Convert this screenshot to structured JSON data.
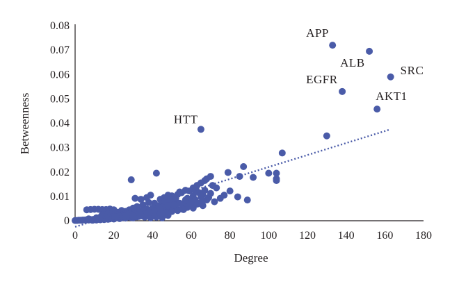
{
  "chart_data": {
    "type": "scatter",
    "title": "",
    "xlabel": "Degree",
    "ylabel": "Betweenness",
    "xlim": [
      0,
      180
    ],
    "ylim": [
      0,
      0.08
    ],
    "xticks": [
      "0",
      "20",
      "40",
      "60",
      "80",
      "100",
      "120",
      "140",
      "160",
      "180"
    ],
    "yticks": [
      "0",
      "0.01",
      "0.02",
      "0.03",
      "0.04",
      "0.05",
      "0.06",
      "0.07",
      "0.08"
    ],
    "grid": false,
    "legend": "none",
    "point_color": "#4a5ba8",
    "trendline": {
      "style": "dotted",
      "x": [
        0,
        163
      ],
      "y": [
        -0.0025,
        0.0375
      ]
    },
    "labeled_points": [
      {
        "label": "APP",
        "x": 133,
        "y": 0.072
      },
      {
        "label": "ALB",
        "x": 152,
        "y": 0.0695
      },
      {
        "label": "SRC",
        "x": 163,
        "y": 0.059
      },
      {
        "label": "EGFR",
        "x": 138,
        "y": 0.053
      },
      {
        "label": "AKT1",
        "x": 156,
        "y": 0.0458
      },
      {
        "label": "HTT",
        "x": 65,
        "y": 0.0375
      }
    ],
    "points": [
      [
        130,
        0.0348
      ],
      [
        107,
        0.0278
      ],
      [
        104,
        0.0195
      ],
      [
        104,
        0.0172
      ],
      [
        104,
        0.0165
      ],
      [
        100,
        0.0195
      ],
      [
        92,
        0.0178
      ],
      [
        87,
        0.0222
      ],
      [
        85,
        0.0182
      ],
      [
        79,
        0.0198
      ],
      [
        89,
        0.0085
      ],
      [
        84,
        0.0098
      ],
      [
        80,
        0.0122
      ],
      [
        73,
        0.0135
      ],
      [
        71,
        0.0145
      ],
      [
        70,
        0.0182
      ],
      [
        68,
        0.0172
      ],
      [
        67,
        0.0165
      ],
      [
        65,
        0.0155
      ],
      [
        63,
        0.0145
      ],
      [
        61,
        0.0135
      ],
      [
        62,
        0.0125
      ],
      [
        59,
        0.0122
      ],
      [
        57,
        0.0125
      ],
      [
        55,
        0.0115
      ],
      [
        53,
        0.0108
      ],
      [
        50,
        0.0102
      ],
      [
        48,
        0.0105
      ],
      [
        46,
        0.0095
      ],
      [
        44,
        0.0088
      ],
      [
        42,
        0.0195
      ],
      [
        29,
        0.0168
      ],
      [
        66,
        0.0108
      ],
      [
        68,
        0.0085
      ],
      [
        66,
        0.0062
      ],
      [
        61,
        0.0052
      ],
      [
        64,
        0.0072
      ],
      [
        59,
        0.0075
      ],
      [
        56,
        0.0068
      ],
      [
        53,
        0.0072
      ],
      [
        50,
        0.0078
      ],
      [
        47,
        0.0072
      ],
      [
        44,
        0.0065
      ],
      [
        41,
        0.0072
      ],
      [
        38,
        0.0075
      ],
      [
        35,
        0.0065
      ],
      [
        32,
        0.0058
      ],
      [
        31,
        0.0092
      ],
      [
        34,
        0.0088
      ],
      [
        37,
        0.0095
      ],
      [
        39,
        0.0105
      ],
      [
        36,
        0.0048
      ],
      [
        33,
        0.0042
      ],
      [
        30,
        0.0052
      ],
      [
        28,
        0.0045
      ],
      [
        26,
        0.0038
      ],
      [
        24,
        0.0042
      ],
      [
        22,
        0.0035
      ],
      [
        20,
        0.0045
      ],
      [
        18,
        0.0048
      ],
      [
        16,
        0.0046
      ],
      [
        14,
        0.0046
      ],
      [
        12,
        0.0047
      ],
      [
        10,
        0.0047
      ],
      [
        8,
        0.0046
      ],
      [
        6,
        0.0045
      ],
      [
        14,
        0.0025
      ],
      [
        17,
        0.0028
      ],
      [
        19,
        0.0022
      ],
      [
        22,
        0.0024
      ],
      [
        25,
        0.0026
      ],
      [
        28,
        0.0031
      ],
      [
        31,
        0.0036
      ],
      [
        34,
        0.0031
      ],
      [
        37,
        0.0026
      ],
      [
        40,
        0.0032
      ],
      [
        43,
        0.0038
      ],
      [
        46,
        0.0042
      ],
      [
        49,
        0.0046
      ],
      [
        52,
        0.0052
      ],
      [
        55,
        0.0048
      ],
      [
        58,
        0.0055
      ],
      [
        42,
        0.0015
      ],
      [
        45,
        0.0012
      ],
      [
        48,
        0.0022
      ],
      [
        39,
        0.0012
      ],
      [
        36,
        0.0015
      ],
      [
        33,
        0.0018
      ],
      [
        30,
        0.0012
      ],
      [
        27,
        0.0015
      ],
      [
        24,
        0.0012
      ],
      [
        21,
        0.0012
      ],
      [
        18,
        0.0008
      ],
      [
        15,
        0.0012
      ],
      [
        12,
        0.0008
      ],
      [
        9,
        0.0005
      ],
      [
        6,
        0.0004
      ],
      [
        4,
        0.0003
      ],
      [
        2,
        0.0002
      ],
      [
        0,
        0.0001
      ],
      [
        1,
        0.0001
      ],
      [
        3,
        0.0002
      ],
      [
        5,
        0.0003
      ],
      [
        7,
        0.0003
      ],
      [
        9,
        0.0002
      ],
      [
        11,
        0.0003
      ],
      [
        13,
        0.0004
      ],
      [
        15,
        0.0005
      ],
      [
        17,
        0.0006
      ],
      [
        20,
        0.0007
      ],
      [
        23,
        0.0009
      ],
      [
        26,
        0.0011
      ],
      [
        29,
        0.0013
      ],
      [
        32,
        0.0016
      ],
      [
        35,
        0.0019
      ],
      [
        38,
        0.0022
      ],
      [
        41,
        0.0026
      ],
      [
        44,
        0.0029
      ],
      [
        47,
        0.0033
      ],
      [
        50,
        0.0038
      ],
      [
        53,
        0.0042
      ],
      [
        56,
        0.0046
      ],
      [
        60,
        0.0061
      ],
      [
        63,
        0.0068
      ],
      [
        66,
        0.0082
      ],
      [
        69,
        0.0095
      ],
      [
        72,
        0.0078
      ],
      [
        75,
        0.0092
      ],
      [
        77,
        0.0105
      ],
      [
        54,
        0.0118
      ],
      [
        52,
        0.0092
      ],
      [
        49,
        0.0085
      ],
      [
        46,
        0.0078
      ],
      [
        43,
        0.0055
      ],
      [
        40,
        0.0052
      ],
      [
        37,
        0.0048
      ],
      [
        35,
        0.0042
      ],
      [
        33,
        0.0035
      ],
      [
        31,
        0.0028
      ],
      [
        29,
        0.0024
      ],
      [
        27,
        0.0022
      ],
      [
        25,
        0.0019
      ],
      [
        23,
        0.0018
      ],
      [
        21,
        0.0016
      ],
      [
        19,
        0.0015
      ],
      [
        17,
        0.0013
      ],
      [
        16,
        0.0011
      ],
      [
        14,
        0.0009
      ],
      [
        12,
        0.0007
      ],
      [
        10,
        0.0006
      ],
      [
        8,
        0.0005
      ],
      [
        7,
        0.0008
      ],
      [
        11,
        0.0012
      ],
      [
        13,
        0.0015
      ],
      [
        58,
        0.0092
      ],
      [
        61,
        0.0102
      ],
      [
        64,
        0.0115
      ],
      [
        67,
        0.0125
      ],
      [
        70,
        0.0112
      ],
      [
        62,
        0.0085
      ],
      [
        60,
        0.0078
      ],
      [
        57,
        0.0085
      ],
      [
        65,
        0.0098
      ],
      [
        45,
        0.0055
      ],
      [
        48,
        0.0062
      ],
      [
        51,
        0.0065
      ],
      [
        54,
        0.0072
      ],
      [
        38,
        0.0035
      ],
      [
        41,
        0.0042
      ],
      [
        44,
        0.0048
      ],
      [
        36,
        0.0028
      ],
      [
        34,
        0.0022
      ],
      [
        32,
        0.0025
      ],
      [
        30,
        0.0018
      ]
    ]
  }
}
